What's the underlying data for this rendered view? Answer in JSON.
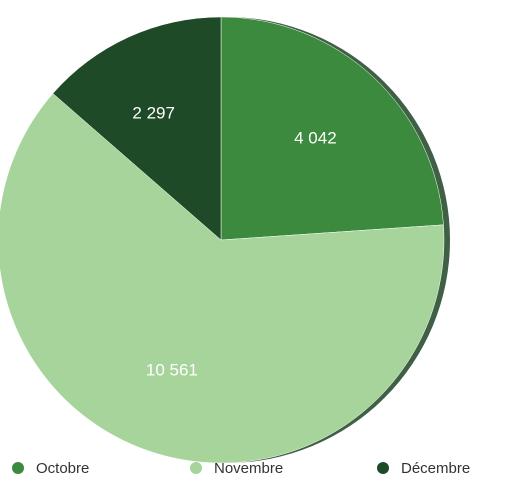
{
  "chart_data": {
    "type": "pie",
    "categories": [
      "Octobre",
      "Novembre",
      "Décembre"
    ],
    "values": [
      4042,
      10561,
      2297
    ],
    "value_labels": [
      "4 042",
      "10 561",
      "2 297"
    ],
    "colors": [
      "#3b8a3e",
      "#a6d49a",
      "#1f4a27"
    ],
    "start_angle_deg": 0,
    "direction": "clockwise",
    "legend": {
      "position": "bottom",
      "entries": [
        "Octobre",
        "Novembre",
        "Décembre"
      ]
    }
  }
}
